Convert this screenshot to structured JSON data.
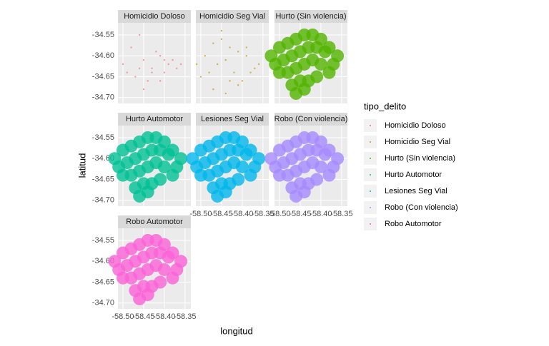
{
  "chart_data": {
    "type": "scatter",
    "x_label": "longitud",
    "y_label": "latitud",
    "legend_title": "tipo_delito",
    "grid": true,
    "xlim": [
      -58.512,
      -58.336
    ],
    "ylim": [
      -34.714,
      -34.521
    ],
    "xticks": [
      {
        "value": -58.5,
        "label": "-58.50"
      },
      {
        "value": -58.45,
        "label": "-58.45"
      },
      {
        "value": -58.4,
        "label": "-58.40"
      },
      {
        "value": -58.35,
        "label": "-58.35"
      }
    ],
    "yticks": [
      {
        "value": -34.55,
        "label": "-34.55"
      },
      {
        "value": -34.6,
        "label": "-34.60"
      },
      {
        "value": -34.65,
        "label": "-34.65"
      },
      {
        "value": -34.7,
        "label": "-34.70"
      }
    ],
    "series": [
      {
        "name": "Homicidio Doloso",
        "color": "#F8766D",
        "x": [
          -58.5,
          -58.48,
          -58.46,
          -58.45,
          -58.43,
          -58.41,
          -58.4,
          -58.39,
          -58.38,
          -58.37,
          -58.49,
          -58.47,
          -58.44,
          -58.42,
          -58.4,
          -58.36,
          -58.45,
          -58.43,
          -58.41,
          -58.46
        ],
        "y": [
          -34.62,
          -34.58,
          -34.55,
          -34.61,
          -34.63,
          -34.6,
          -34.64,
          -34.62,
          -34.61,
          -34.63,
          -34.64,
          -34.65,
          -34.66,
          -34.59,
          -34.61,
          -34.62,
          -34.68,
          -34.64,
          -34.66,
          -34.63
        ]
      },
      {
        "name": "Homicidio Seg Vial",
        "color": "#C49A00",
        "x": [
          -58.51,
          -58.49,
          -58.47,
          -58.45,
          -58.43,
          -58.41,
          -58.39,
          -58.37,
          -58.36,
          -58.5,
          -58.48,
          -58.46,
          -58.44,
          -58.42,
          -58.4,
          -58.38,
          -58.47,
          -58.44,
          -58.41,
          -58.45,
          -58.43,
          -58.39
        ],
        "y": [
          -34.62,
          -34.6,
          -34.57,
          -34.54,
          -34.58,
          -34.59,
          -34.6,
          -34.63,
          -34.62,
          -34.65,
          -34.64,
          -34.62,
          -34.61,
          -34.64,
          -34.66,
          -34.64,
          -34.68,
          -34.69,
          -34.67,
          -34.56,
          -34.66,
          -34.58
        ]
      },
      {
        "name": "Hurto (Sin violencia)",
        "color": "#53B400",
        "x": [
          -58.52,
          -58.5,
          -58.48,
          -58.46,
          -58.44,
          -58.42,
          -58.4,
          -58.38,
          -58.36,
          -58.51,
          -58.49,
          -58.47,
          -58.45,
          -58.43,
          -58.41,
          -58.39,
          -58.37,
          -58.5,
          -58.48,
          -58.46,
          -58.44,
          -58.42,
          -58.4,
          -58.38,
          -58.47,
          -58.45,
          -58.43,
          -58.41,
          -58.46,
          -58.44
        ],
        "y": [
          -34.6,
          -34.58,
          -34.57,
          -34.56,
          -34.55,
          -34.55,
          -34.56,
          -34.58,
          -34.6,
          -34.62,
          -34.61,
          -34.6,
          -34.59,
          -34.58,
          -34.58,
          -34.59,
          -34.62,
          -34.64,
          -34.64,
          -34.63,
          -34.62,
          -34.61,
          -34.62,
          -34.64,
          -34.67,
          -34.66,
          -34.66,
          -34.65,
          -34.69,
          -34.68
        ]
      },
      {
        "name": "Hurto Automotor",
        "color": "#00C094",
        "x": [
          -58.52,
          -58.5,
          -58.48,
          -58.46,
          -58.44,
          -58.42,
          -58.4,
          -58.38,
          -58.36,
          -58.51,
          -58.49,
          -58.47,
          -58.45,
          -58.43,
          -58.41,
          -58.39,
          -58.37,
          -58.5,
          -58.48,
          -58.46,
          -58.44,
          -58.42,
          -58.4,
          -58.38,
          -58.47,
          -58.45,
          -58.43,
          -58.41,
          -58.46,
          -58.44
        ],
        "y": [
          -34.6,
          -34.58,
          -34.57,
          -34.56,
          -34.55,
          -34.55,
          -34.56,
          -34.58,
          -34.6,
          -34.62,
          -34.61,
          -34.6,
          -34.59,
          -34.58,
          -34.58,
          -34.59,
          -34.62,
          -34.64,
          -34.64,
          -34.63,
          -34.62,
          -34.61,
          -34.62,
          -34.64,
          -34.67,
          -34.66,
          -34.66,
          -34.65,
          -34.69,
          -34.68
        ]
      },
      {
        "name": "Lesiones Seg Vial",
        "color": "#00B6EB",
        "x": [
          -58.52,
          -58.5,
          -58.48,
          -58.46,
          -58.44,
          -58.42,
          -58.4,
          -58.38,
          -58.36,
          -58.51,
          -58.49,
          -58.47,
          -58.45,
          -58.43,
          -58.41,
          -58.39,
          -58.37,
          -58.5,
          -58.48,
          -58.46,
          -58.44,
          -58.42,
          -58.4,
          -58.38,
          -58.47,
          -58.45,
          -58.43,
          -58.41,
          -58.46,
          -58.44
        ],
        "y": [
          -34.6,
          -34.58,
          -34.57,
          -34.56,
          -34.55,
          -34.55,
          -34.56,
          -34.58,
          -34.6,
          -34.62,
          -34.61,
          -34.6,
          -34.59,
          -34.58,
          -34.58,
          -34.59,
          -34.62,
          -34.64,
          -34.64,
          -34.63,
          -34.62,
          -34.61,
          -34.62,
          -34.64,
          -34.67,
          -34.66,
          -34.66,
          -34.65,
          -34.69,
          -34.68
        ]
      },
      {
        "name": "Robo (Con violencia)",
        "color": "#A58AFF",
        "x": [
          -58.52,
          -58.5,
          -58.48,
          -58.46,
          -58.44,
          -58.42,
          -58.4,
          -58.38,
          -58.36,
          -58.51,
          -58.49,
          -58.47,
          -58.45,
          -58.43,
          -58.41,
          -58.39,
          -58.37,
          -58.5,
          -58.48,
          -58.46,
          -58.44,
          -58.42,
          -58.4,
          -58.38,
          -58.47,
          -58.45,
          -58.43,
          -58.41,
          -58.46,
          -58.44
        ],
        "y": [
          -34.6,
          -34.58,
          -34.57,
          -34.56,
          -34.55,
          -34.55,
          -34.56,
          -34.58,
          -34.6,
          -34.62,
          -34.61,
          -34.6,
          -34.59,
          -34.58,
          -34.58,
          -34.59,
          -34.62,
          -34.64,
          -34.64,
          -34.63,
          -34.62,
          -34.61,
          -34.62,
          -34.64,
          -34.67,
          -34.66,
          -34.66,
          -34.65,
          -34.69,
          -34.68
        ]
      },
      {
        "name": "Robo Automotor",
        "color": "#FB61D7",
        "x": [
          -58.52,
          -58.5,
          -58.48,
          -58.46,
          -58.44,
          -58.42,
          -58.4,
          -58.38,
          -58.36,
          -58.51,
          -58.49,
          -58.47,
          -58.45,
          -58.43,
          -58.41,
          -58.39,
          -58.37,
          -58.5,
          -58.48,
          -58.46,
          -58.44,
          -58.42,
          -58.4,
          -58.38,
          -58.47,
          -58.45,
          -58.43,
          -58.41,
          -58.46,
          -58.44
        ],
        "y": [
          -34.6,
          -34.58,
          -34.57,
          -34.56,
          -34.55,
          -34.55,
          -34.56,
          -34.58,
          -34.6,
          -34.62,
          -34.61,
          -34.6,
          -34.59,
          -34.58,
          -34.58,
          -34.59,
          -34.62,
          -34.64,
          -34.64,
          -34.63,
          -34.62,
          -34.61,
          -34.62,
          -34.64,
          -34.67,
          -34.66,
          -34.66,
          -34.65,
          -34.69,
          -34.68
        ]
      }
    ]
  }
}
